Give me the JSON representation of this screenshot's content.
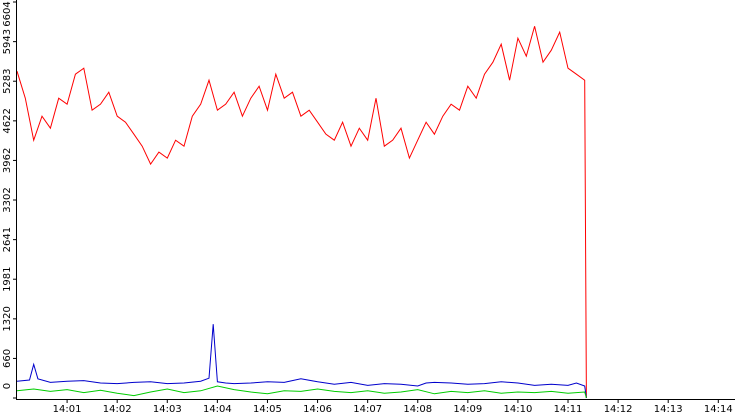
{
  "chart_data": {
    "type": "line",
    "title": "",
    "xlabel": "",
    "ylabel": "",
    "ylim": [
      0,
      6604
    ],
    "y_ticks": [
      0,
      660,
      1320,
      1981,
      2641,
      3302,
      3962,
      4622,
      5283,
      5943,
      6604
    ],
    "x_range": [
      "14:00:40",
      "14:15:00"
    ],
    "x_tick_labels": [
      "14:01",
      "14:02",
      "14:03",
      "14:04",
      "14:05",
      "14:06",
      "14:07",
      "14:08",
      "14:09",
      "14:10",
      "14:11",
      "14:12",
      "14:13",
      "14:14",
      "14"
    ],
    "grid": false,
    "legend": "none",
    "series": [
      {
        "color": "#ff0000",
        "x": [
          "14:00:40",
          "14:00:50",
          "14:01:00",
          "14:01:10",
          "14:01:20",
          "14:01:30",
          "14:01:40",
          "14:01:50",
          "14:02:00",
          "14:02:10",
          "14:02:20",
          "14:02:30",
          "14:02:40",
          "14:02:50",
          "14:03:00",
          "14:03:10",
          "14:03:20",
          "14:03:30",
          "14:03:40",
          "14:03:50",
          "14:04:00",
          "14:04:10",
          "14:04:20",
          "14:04:30",
          "14:04:40",
          "14:04:50",
          "14:05:00",
          "14:05:10",
          "14:05:20",
          "14:05:30",
          "14:05:40",
          "14:05:50",
          "14:06:00",
          "14:06:10",
          "14:06:20",
          "14:06:30",
          "14:06:40",
          "14:06:50",
          "14:07:00",
          "14:07:10",
          "14:07:20",
          "14:07:30",
          "14:07:40",
          "14:07:50",
          "14:08:00",
          "14:08:10",
          "14:08:20",
          "14:08:30",
          "14:08:40",
          "14:08:50",
          "14:09:00",
          "14:09:10",
          "14:09:20",
          "14:09:30",
          "14:09:40",
          "14:09:50",
          "14:10:00",
          "14:10:10",
          "14:10:20",
          "14:10:30",
          "14:10:40",
          "14:10:50",
          "14:11:00",
          "14:11:10",
          "14:11:20",
          "14:11:30",
          "14:11:40",
          "14:11:50",
          "14:12:00",
          "14:12:02"
        ],
        "values": [
          5450,
          5000,
          4300,
          4700,
          4500,
          5000,
          4900,
          5400,
          5500,
          4800,
          4900,
          5100,
          4700,
          4600,
          4400,
          4200,
          3900,
          4100,
          4000,
          4300,
          4200,
          4700,
          4900,
          5300,
          4800,
          4900,
          5100,
          4700,
          5000,
          5200,
          4800,
          5400,
          5000,
          5100,
          4700,
          4800,
          4600,
          4400,
          4300,
          4600,
          4200,
          4500,
          4300,
          5000,
          4200,
          4300,
          4500,
          4000,
          4300,
          4600,
          4400,
          4700,
          4900,
          4800,
          5200,
          5000,
          5400,
          5600,
          5900,
          5300,
          6000,
          5700,
          6200,
          5600,
          5800,
          6100,
          5500,
          5400,
          5300,
          0
        ]
      },
      {
        "color": "#0000cc",
        "x": [
          "14:00:40",
          "14:00:55",
          "14:01:00",
          "14:01:05",
          "14:01:20",
          "14:01:40",
          "14:02:00",
          "14:02:20",
          "14:02:40",
          "14:03:00",
          "14:03:20",
          "14:03:40",
          "14:04:00",
          "14:04:20",
          "14:04:30",
          "14:04:35",
          "14:04:40",
          "14:04:50",
          "14:05:00",
          "14:05:20",
          "14:05:40",
          "14:06:00",
          "14:06:20",
          "14:06:40",
          "14:07:00",
          "14:07:20",
          "14:07:40",
          "14:08:00",
          "14:08:20",
          "14:08:40",
          "14:08:50",
          "14:09:00",
          "14:09:20",
          "14:09:40",
          "14:10:00",
          "14:10:20",
          "14:10:40",
          "14:11:00",
          "14:11:20",
          "14:11:40",
          "14:11:50",
          "14:12:00",
          "14:12:02"
        ],
        "values": [
          280,
          300,
          560,
          320,
          260,
          280,
          290,
          250,
          240,
          260,
          270,
          240,
          250,
          280,
          330,
          1230,
          270,
          250,
          240,
          250,
          270,
          260,
          320,
          270,
          230,
          260,
          210,
          240,
          230,
          200,
          250,
          260,
          250,
          230,
          240,
          270,
          250,
          210,
          230,
          210,
          250,
          200,
          0
        ]
      },
      {
        "color": "#00cc00",
        "x": [
          "14:00:40",
          "14:01:00",
          "14:01:20",
          "14:01:40",
          "14:02:00",
          "14:02:20",
          "14:02:40",
          "14:03:00",
          "14:03:20",
          "14:03:40",
          "14:04:00",
          "14:04:20",
          "14:04:40",
          "14:05:00",
          "14:05:20",
          "14:05:40",
          "14:06:00",
          "14:06:20",
          "14:06:40",
          "14:07:00",
          "14:07:20",
          "14:07:40",
          "14:08:00",
          "14:08:20",
          "14:08:40",
          "14:09:00",
          "14:09:20",
          "14:09:40",
          "14:10:00",
          "14:10:20",
          "14:10:40",
          "14:11:00",
          "14:11:20",
          "14:11:40",
          "14:12:00",
          "14:12:02"
        ],
        "values": [
          120,
          150,
          110,
          140,
          90,
          130,
          80,
          40,
          100,
          150,
          90,
          120,
          200,
          140,
          100,
          70,
          120,
          110,
          150,
          110,
          90,
          120,
          80,
          100,
          140,
          70,
          110,
          90,
          120,
          80,
          100,
          90,
          110,
          80,
          100,
          0
        ]
      }
    ]
  }
}
